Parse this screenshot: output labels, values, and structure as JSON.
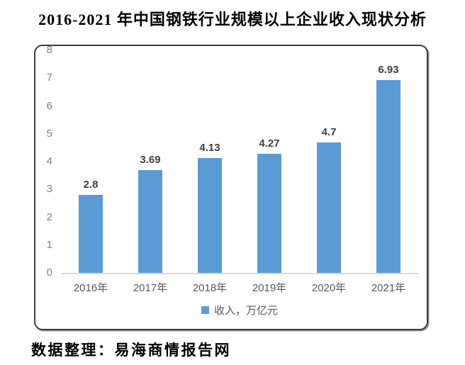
{
  "title": "2016-2021 年中国钢铁行业规模以上企业收入现状分析",
  "source_note": "数据整理：易海商情报告网",
  "chart_data": {
    "type": "bar",
    "title": "2016-2021 年中国钢铁行业规模以上企业收入现状分析",
    "categories": [
      "2016年",
      "2017年",
      "2018年",
      "2019年",
      "2020年",
      "2021年"
    ],
    "values": [
      2.8,
      3.69,
      4.13,
      4.27,
      4.7,
      6.93
    ],
    "value_labels": [
      "2.8",
      "3.69",
      "4.13",
      "4.27",
      "4.7",
      "6.93"
    ],
    "series_name": "收入，万亿元",
    "legend": "收入，万亿元",
    "legend_position": "bottom",
    "xlabel": "",
    "ylabel": "",
    "ylim": [
      0,
      8
    ],
    "yticks": [
      0,
      1,
      2,
      3,
      4,
      5,
      6,
      7,
      8
    ],
    "grid": false,
    "bar_color": "#5B9BD5",
    "axis_line_color": "#d9d9d9",
    "tick_label_color": "#808080",
    "value_label_color": "#404040"
  }
}
